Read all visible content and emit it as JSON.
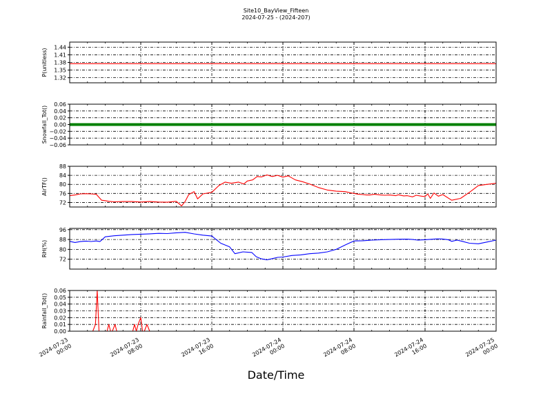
{
  "title": "Site10_BayView_Fifteen",
  "subtitle": "2024-07-25 - (2024-207)",
  "xlabel": "Date/Time",
  "colors": {
    "red": "#ff0000",
    "green": "#008000",
    "blue": "#0000ff",
    "axis": "#000000"
  },
  "chart_data": {
    "type": "line",
    "x_axis": {
      "type": "time",
      "range": [
        "2024-07-23 00:00",
        "2024-07-25 00:00"
      ],
      "tick_labels": [
        [
          "2024-07-23",
          "00:00"
        ],
        [
          "2024-07-23",
          "08:00"
        ],
        [
          "2024-07-23",
          "16:00"
        ],
        [
          "2024-07-24",
          "00:00"
        ],
        [
          "2024-07-24",
          "08:00"
        ],
        [
          "2024-07-24",
          "16:00"
        ],
        [
          "2024-07-25",
          "00:00"
        ]
      ]
    },
    "panels": [
      {
        "ylabel": "P(unitless)",
        "ylim": [
          1.3,
          1.46
        ],
        "yticks": [
          "1.32",
          "1.35",
          "1.38",
          "1.41",
          "1.44"
        ],
        "color": "#ff0000",
        "style": "line",
        "grid": true,
        "series_hours": [
          0,
          48
        ],
        "series_values": [
          1.375,
          1.375
        ]
      },
      {
        "ylabel": "Snowfall_Tot()",
        "ylim": [
          -0.06,
          0.06
        ],
        "yticks": [
          "0.06",
          "0.04",
          "0.02",
          "0.00",
          "−0.02",
          "−0.04",
          "−0.06"
        ],
        "color": "#008000",
        "style": "thick",
        "grid": true,
        "series_hours": [
          0,
          48
        ],
        "series_values": [
          0.0,
          0.0
        ]
      },
      {
        "ylabel": "AirTF()",
        "ylim": [
          70,
          88
        ],
        "yticks": [
          "88",
          "84",
          "80",
          "76",
          "72"
        ],
        "color": "#ff0000",
        "style": "line",
        "grid": true,
        "series_hours": [
          0,
          0.6,
          1.2,
          1.8,
          2.4,
          3.0,
          3.6,
          4.0,
          4.4,
          5.0,
          6.0,
          7.0,
          8.0,
          9.0,
          10.0,
          11.0,
          12.0,
          12.6,
          13.0,
          13.4,
          14.0,
          14.4,
          15.0,
          16.0,
          16.8,
          17.5,
          18.2,
          19.0,
          19.6,
          20.0,
          20.6,
          21.1,
          21.6,
          22.2,
          22.8,
          23.4,
          24.0,
          24.6,
          25.4,
          26.2,
          27.0,
          28.0,
          29.0,
          30.0,
          31.0,
          31.7,
          32.0,
          32.5,
          33.0,
          33.4,
          33.8,
          34.3,
          35.0,
          35.5,
          36.0,
          36.7,
          37.0,
          37.6,
          38.0,
          38.6,
          39.0,
          39.6,
          40.0,
          40.3,
          40.6,
          41.0,
          41.5,
          42.0,
          43.0,
          44.0,
          45.0,
          46.0,
          47.0,
          48.0
        ],
        "series_values": [
          75.0,
          75.3,
          75.8,
          75.9,
          75.8,
          75.6,
          73.0,
          72.8,
          72.5,
          72.3,
          72.4,
          72.4,
          72.2,
          72.4,
          72.2,
          72.1,
          72.5,
          70.5,
          72.5,
          75.5,
          76.8,
          73.6,
          75.8,
          76.5,
          79.5,
          81.0,
          80.5,
          81.0,
          80.2,
          81.5,
          82.0,
          83.5,
          83.3,
          84.2,
          83.5,
          84.0,
          83.2,
          83.8,
          82.0,
          81.2,
          80.2,
          78.6,
          77.5,
          77.0,
          76.8,
          76.2,
          76.0,
          75.6,
          75.5,
          75.3,
          75.3,
          75.6,
          75.3,
          75.2,
          75.3,
          75.0,
          75.4,
          74.9,
          75.0,
          74.5,
          75.2,
          74.8,
          74.6,
          75.8,
          73.8,
          76.2,
          74.8,
          75.5,
          73.0,
          73.8,
          76.5,
          79.5,
          80.0,
          80.5
        ],
        "series2_note": "continuation",
        "series_hours_2": [
          48.0
        ],
        "series_values_2": [
          80.5
        ]
      },
      {
        "ylabel": "RH(%)",
        "ylim": [
          64,
          97
        ],
        "yticks": [
          "96",
          "88",
          "80",
          "72"
        ],
        "color": "#0000ff",
        "style": "line",
        "grid": true,
        "series_hours": [
          0,
          0.6,
          1.2,
          1.8,
          2.4,
          3.0,
          3.4,
          4.0,
          5.0,
          6.0,
          7.0,
          8.0,
          9.0,
          10.0,
          11.0,
          12.0,
          13.0,
          14.0,
          15.0,
          16.0,
          17.0,
          18.0,
          18.6,
          19.5,
          20.5,
          21.0,
          21.5,
          22.2,
          22.8,
          23.4,
          24.0,
          25.0,
          26.0,
          27.0,
          28.0,
          29.0,
          30.0,
          31.0,
          32.0,
          33.0,
          34.0,
          35.0,
          36.0,
          37.0,
          38.0,
          38.6,
          39.2,
          40.0,
          40.8,
          41.4,
          42.0,
          42.6,
          43.0,
          43.6,
          44.2,
          45.0,
          46.0,
          47.0,
          48.0
        ],
        "series_values": [
          86.5,
          85.6,
          86.3,
          86.7,
          86.4,
          86.8,
          86.3,
          90.2,
          91.0,
          91.5,
          92.0,
          92.3,
          92.6,
          93.0,
          92.8,
          93.4,
          93.8,
          92.5,
          91.5,
          90.8,
          85.0,
          82.0,
          76.5,
          78.0,
          77.5,
          74.0,
          72.5,
          71.5,
          72.5,
          73.5,
          73.8,
          75.0,
          75.5,
          76.5,
          77.0,
          78.0,
          80.0,
          83.5,
          86.8,
          87.0,
          87.5,
          87.8,
          88.0,
          88.2,
          88.3,
          88.0,
          87.5,
          87.8,
          88.2,
          88.5,
          88.4,
          87.8,
          86.5,
          87.5,
          86.5,
          85.0,
          84.5,
          86.0,
          87.5
        ],
        "series_hours_2": [],
        "series_values_2": []
      },
      {
        "ylabel": "Rainfall_Tot()",
        "ylim": [
          0.0,
          0.06
        ],
        "yticks": [
          "0.06",
          "0.05",
          "0.04",
          "0.03",
          "0.02",
          "0.01",
          "0.00"
        ],
        "color": "#ff0000",
        "style": "line",
        "grid": true,
        "series_hours": [
          0,
          2.3,
          2.6,
          2.9,
          3.1,
          3.3,
          3.5,
          4.0,
          4.2,
          4.4,
          4.6,
          4.8,
          5.1,
          5.3,
          5.6,
          6.0,
          7.0,
          7.1,
          7.3,
          7.5,
          7.7,
          8.0,
          8.2,
          8.4,
          8.7,
          9.0,
          48.0
        ],
        "series_values": [
          0.0,
          0.0,
          0.0,
          0.01,
          0.06,
          0.0,
          0.0,
          0.0,
          0.0,
          0.01,
          0.0,
          0.0,
          0.01,
          0.0,
          0.0,
          0.0,
          0.0,
          0.0,
          0.01,
          0.0,
          0.01,
          0.02,
          0.0,
          0.0,
          0.01,
          0.0,
          0.0
        ],
        "series_hours_2": [],
        "series_values_2": []
      }
    ]
  }
}
